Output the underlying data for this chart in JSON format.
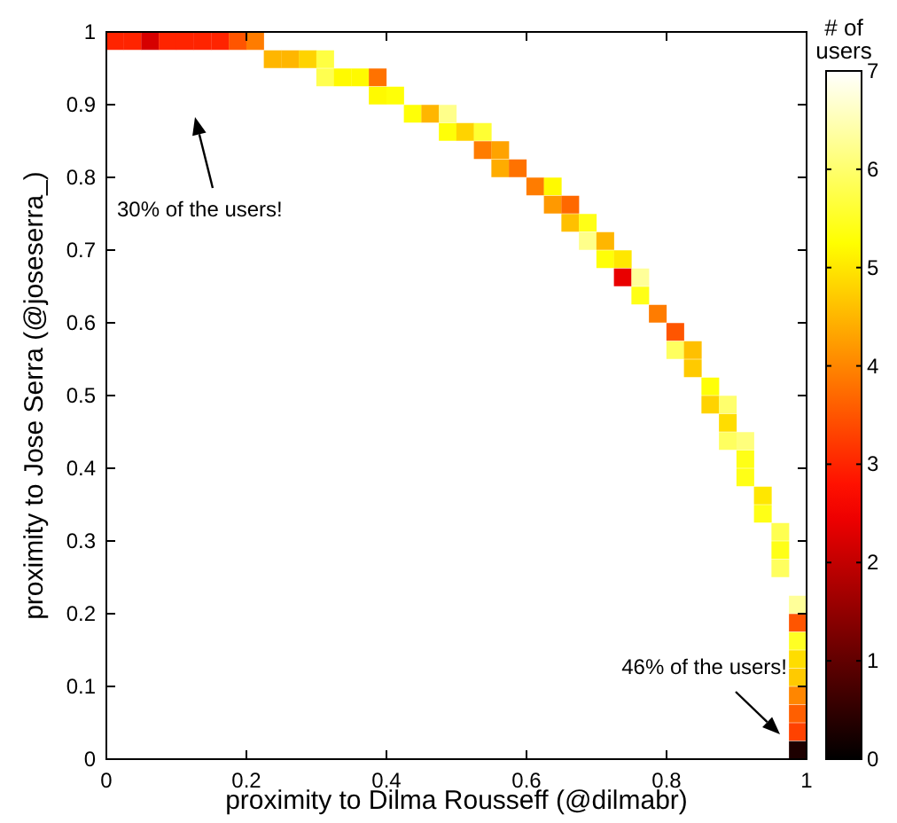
{
  "chart_data": {
    "type": "scatter",
    "marker": "square",
    "xlabel": "proximity to Dilma Rousseff (@dilmabr)",
    "ylabel": "proximity to Jose Serra (@joseserra_)",
    "clabel": "# of users",
    "xlim": [
      0,
      1
    ],
    "xticks": [
      0,
      0.2,
      0.4,
      0.6,
      0.8,
      1
    ],
    "ylim": [
      0,
      1
    ],
    "yticks": [
      0,
      0.1,
      0.2,
      0.3,
      0.4,
      0.5,
      0.6,
      0.7,
      0.8,
      0.9,
      1
    ],
    "clim": [
      0,
      7
    ],
    "cticks": [
      0,
      1,
      2,
      3,
      4,
      5,
      6,
      7
    ],
    "grid": false,
    "annotations": [
      "30% of the users!",
      "46% of the users!"
    ],
    "x": [
      0.0125,
      0.0375,
      0.0625,
      0.0875,
      0.1125,
      0.1375,
      0.1625,
      0.1875,
      0.2125,
      0.2375,
      0.2625,
      0.2875,
      0.3125,
      0.3125,
      0.3375,
      0.3625,
      0.3875,
      0.3875,
      0.4125,
      0.4375,
      0.4625,
      0.4875,
      0.4875,
      0.5125,
      0.5375,
      0.5375,
      0.5625,
      0.5625,
      0.5875,
      0.6125,
      0.6375,
      0.6375,
      0.6625,
      0.6625,
      0.6875,
      0.6875,
      0.7125,
      0.7125,
      0.7375,
      0.7375,
      0.7625,
      0.7625,
      0.7875,
      0.8125,
      0.8125,
      0.8375,
      0.8375,
      0.8625,
      0.8625,
      0.8875,
      0.8875,
      0.8875,
      0.9125,
      0.9125,
      0.9125,
      0.9375,
      0.9375,
      0.9625,
      0.9625,
      0.9625,
      0.9875,
      0.9875,
      0.9875,
      0.9875,
      0.9875,
      0.9875,
      0.9875,
      0.9875,
      0.9875
    ],
    "values": [
      0.9875,
      0.9875,
      0.9875,
      0.9875,
      0.9875,
      0.9875,
      0.9875,
      0.9875,
      0.9875,
      0.9625,
      0.9625,
      0.9625,
      0.9625,
      0.9375,
      0.9375,
      0.9375,
      0.9375,
      0.9125,
      0.9125,
      0.8875,
      0.8875,
      0.8875,
      0.8625,
      0.8625,
      0.8625,
      0.8375,
      0.8375,
      0.8125,
      0.8125,
      0.7875,
      0.7875,
      0.7625,
      0.7625,
      0.7375,
      0.7375,
      0.7125,
      0.7125,
      0.6875,
      0.6875,
      0.6625,
      0.6625,
      0.6375,
      0.6125,
      0.5875,
      0.5625,
      0.5625,
      0.5375,
      0.5125,
      0.4875,
      0.4875,
      0.4625,
      0.4375,
      0.4375,
      0.4125,
      0.3875,
      0.3625,
      0.3375,
      0.3125,
      0.2875,
      0.2625,
      0.2125,
      0.1875,
      0.1625,
      0.1375,
      0.1125,
      0.0875,
      0.0625,
      0.0375,
      0.0125
    ],
    "cvalues": [
      3,
      3,
      2.2,
      3,
      3,
      3,
      3,
      3.5,
      3.9,
      4.5,
      4.5,
      4.8,
      5.7,
      5.8,
      5.2,
      5.2,
      3.8,
      5.2,
      5.3,
      5.3,
      4.5,
      6.2,
      5.3,
      4.8,
      5.6,
      3.9,
      4.3,
      4.4,
      3.8,
      3.9,
      5.2,
      4.2,
      3.7,
      4.6,
      5.4,
      6.2,
      4.5,
      5.3,
      5.0,
      2.4,
      6.3,
      5.4,
      3.9,
      3.5,
      5.9,
      4.6,
      4.7,
      5.3,
      4.8,
      6.0,
      4.9,
      5.9,
      6.1,
      5.4,
      5.4,
      5.0,
      5.4,
      5.8,
      5.4,
      5.9,
      6.3,
      3.5,
      5.5,
      4.9,
      4.7,
      4.0,
      3.6,
      3.3,
      0.3
    ]
  }
}
